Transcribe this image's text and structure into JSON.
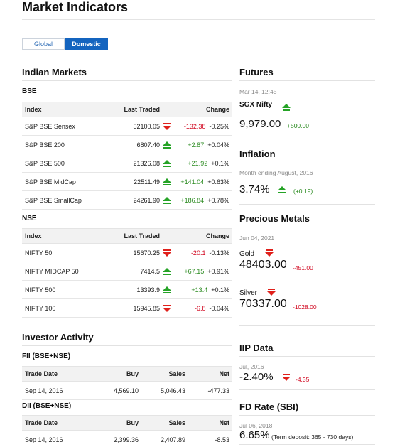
{
  "page": {
    "title": "Market Indicators"
  },
  "tabs": [
    {
      "label": "Global",
      "active": false
    },
    {
      "label": "Domestic",
      "active": true
    }
  ],
  "indian_markets": {
    "title": "Indian Markets",
    "bse": {
      "title": "BSE",
      "headers": [
        "Index",
        "Last Traded",
        "Change"
      ],
      "rows": [
        {
          "index": "S&P BSE Sensex",
          "last": "52100.05",
          "dir": "down",
          "chg": "-132.38",
          "pct": "-0.25%"
        },
        {
          "index": "S&P BSE 200",
          "last": "6807.40",
          "dir": "up",
          "chg": "+2.87",
          "pct": "+0.04%"
        },
        {
          "index": "S&P BSE 500",
          "last": "21326.08",
          "dir": "up",
          "chg": "+21.92",
          "pct": "+0.1%"
        },
        {
          "index": "S&P BSE MidCap",
          "last": "22511.49",
          "dir": "up",
          "chg": "+141.04",
          "pct": "+0.63%"
        },
        {
          "index": "S&P BSE SmallCap",
          "last": "24261.90",
          "dir": "up",
          "chg": "+186.84",
          "pct": "+0.78%"
        }
      ]
    },
    "nse": {
      "title": "NSE",
      "headers": [
        "Index",
        "Last Traded",
        "Change"
      ],
      "rows": [
        {
          "index": "NIFTY 50",
          "last": "15670.25",
          "dir": "down",
          "chg": "-20.1",
          "pct": "-0.13%"
        },
        {
          "index": "NIFTY MIDCAP 50",
          "last": "7414.5",
          "dir": "up",
          "chg": "+67.15",
          "pct": "+0.91%"
        },
        {
          "index": "NIFTY 500",
          "last": "13393.9",
          "dir": "up",
          "chg": "+13.4",
          "pct": "+0.1%"
        },
        {
          "index": "NIFTY 100",
          "last": "15945.85",
          "dir": "down",
          "chg": "-6.8",
          "pct": "-0.04%"
        }
      ]
    }
  },
  "investor_activity": {
    "title": "Investor Activity",
    "fii": {
      "title": "FII (BSE+NSE)",
      "headers": [
        "Trade Date",
        "Buy",
        "Sales",
        "Net"
      ],
      "row": {
        "date": "Sep 14, 2016",
        "buy": "4,569.10",
        "sales": "5,046.43",
        "net": "-477.33"
      }
    },
    "dii": {
      "title": "DII (BSE+NSE)",
      "headers": [
        "Trade Date",
        "Buy",
        "Sales",
        "Net"
      ],
      "row": {
        "date": "Sep 14, 2016",
        "buy": "2,399.36",
        "sales": "2,407.89",
        "net": "-8.53"
      }
    }
  },
  "futures": {
    "title": "Futures",
    "date": "Mar 14, 12:45",
    "name": "SGX Nifty",
    "value": "9,979.00",
    "change": "+500.00"
  },
  "inflation": {
    "title": "Inflation",
    "period": "Month ending August, 2016",
    "value": "3.74%",
    "change": "(+0.19)"
  },
  "precious_metals": {
    "title": "Precious Metals",
    "date": "Jun 04, 2021",
    "gold": {
      "label": "Gold",
      "value": "48403.00",
      "change": "-451.00"
    },
    "silver": {
      "label": "Silver",
      "value": "70337.00",
      "change": "-1028.00"
    }
  },
  "iip": {
    "title": "IIP Data",
    "period": "Jul, 2016",
    "value": "-2.40%",
    "change": "-4.35"
  },
  "fd_rate": {
    "title": "FD Rate (SBI)",
    "date": "Jul 06, 2018",
    "value": "6.65%",
    "note": "(Term deposit: 365 - 730 days)"
  },
  "colors": {
    "accent": "#1464bf",
    "up": "#25a326",
    "down": "#e0201b"
  }
}
